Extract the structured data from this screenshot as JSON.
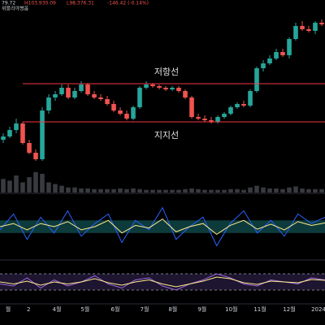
{
  "header": {
    "name": "위블리야병옵",
    "values": [
      "79.72",
      "H103,930.09",
      "L98,376.31",
      "-146.42 (-0.14%)"
    ]
  },
  "chart_data": [
    {
      "type": "candlestick",
      "open": [
        67000,
        68000,
        70000,
        72000,
        66000,
        63000,
        61000,
        76000,
        80000,
        81000,
        83000,
        80000,
        82000,
        84000,
        81000,
        80000,
        79500,
        78000,
        76000,
        75000,
        73500,
        77000,
        83000,
        84000,
        83500,
        83000,
        82500,
        83000,
        82000,
        80000,
        74000,
        73500,
        73000,
        72500,
        74000,
        75000,
        77000,
        78000,
        77500,
        82000,
        89000,
        90500,
        92000,
        94000,
        93000,
        98000,
        102000,
        101000,
        100500,
        103000
      ],
      "high": [
        69000,
        71000,
        73500,
        72500,
        67000,
        64000,
        77000,
        81000,
        82000,
        84000,
        84000,
        83000,
        85000,
        84500,
        82000,
        81000,
        80500,
        79000,
        77000,
        76000,
        77500,
        83500,
        85000,
        84500,
        84000,
        83500,
        83500,
        83500,
        82500,
        80500,
        75000,
        74500,
        74000,
        74500,
        75500,
        77500,
        78500,
        79000,
        82500,
        89500,
        91500,
        93000,
        95000,
        95000,
        98500,
        103000,
        103500,
        102000,
        103500,
        104000
      ],
      "low": [
        66000,
        67500,
        69000,
        65500,
        62500,
        60500,
        60500,
        75000,
        79000,
        80500,
        79500,
        79500,
        81500,
        80500,
        79500,
        79000,
        77500,
        75500,
        74500,
        73000,
        73000,
        76500,
        82500,
        83000,
        82500,
        82000,
        82000,
        81500,
        79500,
        73500,
        73000,
        72500,
        72000,
        72000,
        73500,
        74500,
        76500,
        77000,
        77000,
        81500,
        88000,
        90000,
        91500,
        92500,
        92000,
        97500,
        100500,
        100000,
        99500,
        102000
      ],
      "close": [
        68000,
        70000,
        72000,
        66000,
        63000,
        61000,
        76000,
        80000,
        81000,
        83000,
        80000,
        82000,
        84000,
        81000,
        80000,
        79500,
        78000,
        76000,
        75000,
        73500,
        77000,
        83000,
        84000,
        83500,
        83000,
        82500,
        83000,
        82000,
        80000,
        74000,
        73500,
        73000,
        72500,
        74000,
        75000,
        77000,
        78000,
        77500,
        82000,
        89000,
        90500,
        92000,
        94000,
        93000,
        98000,
        102000,
        101000,
        100500,
        103000,
        102500
      ],
      "volume": [
        40,
        35,
        50,
        30,
        45,
        60,
        55,
        30,
        25,
        20,
        15,
        15,
        12,
        12,
        10,
        10,
        10,
        10,
        12,
        10,
        12,
        10,
        8,
        8,
        8,
        8,
        8,
        8,
        10,
        12,
        10,
        8,
        8,
        8,
        8,
        10,
        10,
        8,
        15,
        20,
        15,
        12,
        12,
        10,
        15,
        18,
        12,
        10,
        10,
        10
      ],
      "up_color": "#26a69a",
      "down_color": "#ef5350",
      "volume_color": "#5d606b",
      "xlim": [
        -0.5,
        49.5
      ],
      "ylim": [
        53750,
        107500
      ],
      "volume_ylim": [
        0,
        100
      ],
      "xticks": [
        {
          "value": 0.75,
          "label": "월"
        },
        {
          "value": 3.9,
          "label": "2"
        },
        {
          "value": 8.25,
          "label": "4월"
        },
        {
          "value": 12.6,
          "label": "5월"
        },
        {
          "value": 17.25,
          "label": "6월"
        },
        {
          "value": 21.75,
          "label": "7월"
        },
        {
          "value": 26.1,
          "label": "8월"
        },
        {
          "value": 30.6,
          "label": "9월"
        },
        {
          "value": 35.1,
          "label": "10월"
        },
        {
          "value": 39.5,
          "label": "11월"
        },
        {
          "value": 44,
          "label": "12월"
        },
        {
          "value": 48.5,
          "label": "2024"
        }
      ],
      "annotations": [
        {
          "label": "저항선",
          "value": 84250,
          "color": "#f23645"
        },
        {
          "label": "지지선",
          "value": 72500,
          "color": "#f23645"
        }
      ]
    },
    {
      "type": "line",
      "ylim": [
        0,
        100
      ],
      "xlim": [
        0,
        24
      ],
      "band": [
        40,
        60
      ],
      "band_color": "#0d3b3b",
      "series": [
        {
          "color": "#2962ff",
          "values": [
            45,
            70,
            30,
            65,
            40,
            75,
            35,
            55,
            70,
            25,
            60,
            45,
            80,
            30,
            50,
            65,
            20,
            55,
            75,
            40,
            60,
            35,
            70,
            55,
            65
          ]
        },
        {
          "color": "#ffeb8a",
          "values": [
            50,
            55,
            45,
            55,
            50,
            58,
            45,
            50,
            60,
            40,
            52,
            48,
            62,
            42,
            50,
            55,
            38,
            52,
            60,
            46,
            54,
            45,
            58,
            52,
            56
          ]
        }
      ]
    },
    {
      "type": "line",
      "ylim": [
        0,
        100
      ],
      "xlim": [
        0,
        24
      ],
      "levels": [
        30,
        70
      ],
      "band_color": "#1e1530",
      "series": [
        {
          "color": "#9c6ade",
          "values": [
            45,
            40,
            60,
            35,
            55,
            40,
            50,
            65,
            45,
            35,
            55,
            60,
            40,
            30,
            45,
            55,
            70,
            60,
            45,
            40,
            55,
            50,
            45,
            60,
            55
          ]
        },
        {
          "color": "#ffeb8a",
          "values": [
            50,
            45,
            52,
            42,
            50,
            45,
            50,
            58,
            48,
            42,
            50,
            55,
            45,
            38,
            45,
            52,
            62,
            58,
            48,
            44,
            52,
            50,
            48,
            56,
            54
          ]
        }
      ]
    }
  ]
}
